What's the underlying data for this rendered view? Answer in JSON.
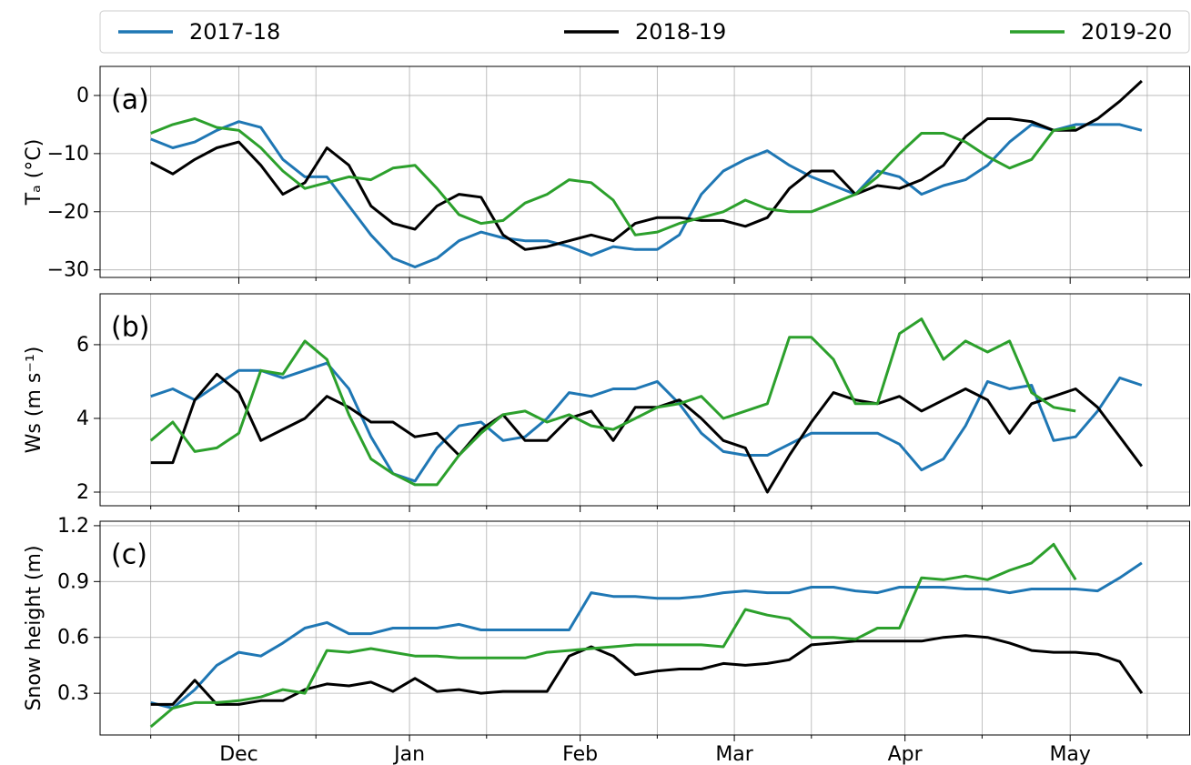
{
  "chart_data": [
    {
      "type": "line",
      "panel_label": "(a)",
      "y_label": "Tₐ (°C)",
      "x": [
        14,
        18,
        22,
        26,
        30,
        34,
        38,
        42,
        46,
        50,
        54,
        58,
        62,
        66,
        70,
        74,
        78,
        82,
        86,
        90,
        94,
        98,
        102,
        106,
        110,
        114,
        118,
        122,
        126,
        130,
        134,
        138,
        142,
        146,
        150,
        154,
        158,
        162,
        166,
        170,
        174,
        178,
        182,
        186,
        190,
        194
      ],
      "xlim": [
        4.8,
        202.7
      ],
      "xticks": [
        {
          "value": 30,
          "label": "Dec"
        },
        {
          "value": 61,
          "label": "Jan"
        },
        {
          "value": 92,
          "label": "Feb"
        },
        {
          "value": 120,
          "label": "Mar"
        },
        {
          "value": 151,
          "label": "Apr"
        },
        {
          "value": 181,
          "label": "May"
        }
      ],
      "xminor": [
        14,
        44,
        75,
        106,
        134,
        165,
        195
      ],
      "ylim": [
        -31.3,
        5
      ],
      "yticks": [
        {
          "value": -30,
          "label": "−30"
        },
        {
          "value": -20,
          "label": "−20"
        },
        {
          "value": -10,
          "label": "−10"
        },
        0
      ],
      "grid": true,
      "series": [
        {
          "name": "2017-18",
          "color": "#1f77b4",
          "values": [
            -7.5,
            -9,
            -8,
            -6,
            -4.5,
            -5.5,
            -11,
            -14,
            -14,
            -19,
            -24,
            -28,
            -29.5,
            -28,
            -25,
            -23.5,
            -24.5,
            -25,
            -25,
            -26,
            -27.5,
            -26,
            -26.5,
            -26.5,
            -24,
            -17,
            -13,
            -11,
            -9.5,
            -12,
            -14,
            -15.5,
            -17,
            -13,
            -14,
            -17,
            -15.5,
            -14.5,
            -12,
            -8,
            -5,
            -6,
            -5,
            -5,
            -5,
            -6
          ]
        },
        {
          "name": "2018-19",
          "color": "#000000",
          "values": [
            -11.5,
            -13.5,
            -11,
            -9,
            -8,
            -12,
            -17,
            -15,
            -9,
            -12,
            -19,
            -22,
            -23,
            -19,
            -17,
            -17.5,
            -24,
            -26.5,
            -26,
            -25,
            -24,
            -25,
            -22,
            -21,
            -21,
            -21.5,
            -21.5,
            -22.5,
            -21,
            -16,
            -13,
            -13,
            -17,
            -15.5,
            -16,
            -14.5,
            -12,
            -7,
            -4,
            -4,
            -4.5,
            -6,
            -6,
            -4,
            -1,
            2.5
          ]
        },
        {
          "name": "2019-20",
          "color": "#2ca02c",
          "values": [
            -6.5,
            -5,
            -4,
            -5.5,
            -6,
            -9,
            -13,
            -16,
            -15,
            -14,
            -14.5,
            -12.5,
            -12,
            -16,
            -20.5,
            -22,
            -21.5,
            -18.5,
            -17,
            -14.5,
            -15,
            -18,
            -24,
            -23.5,
            -22,
            -21,
            -20,
            -18,
            -19.5,
            -20,
            -20,
            -18.5,
            -17,
            -14,
            -10,
            -6.5,
            -6.5,
            -8,
            -10.5,
            -12.5,
            -11,
            -6,
            -5.5,
            null,
            null,
            null
          ]
        }
      ]
    },
    {
      "type": "line",
      "panel_label": "(b)",
      "y_label": "Ws (m s⁻¹)",
      "ylim": [
        1.63,
        7.38
      ],
      "yticks": [
        2,
        4,
        6
      ],
      "grid": true,
      "series": [
        {
          "color": "#1f77b4",
          "values": [
            4.6,
            4.8,
            4.5,
            4.9,
            5.3,
            5.3,
            5.1,
            5.3,
            5.5,
            4.8,
            3.5,
            2.5,
            2.3,
            3.2,
            3.8,
            3.9,
            3.4,
            3.5,
            4,
            4.7,
            4.6,
            4.8,
            4.8,
            5,
            4.4,
            3.6,
            3.1,
            3,
            3,
            3.3,
            3.6,
            3.6,
            3.6,
            3.6,
            3.3,
            2.6,
            2.9,
            3.8,
            5,
            4.8,
            4.9,
            3.4,
            3.5,
            4.2,
            5.1,
            4.9
          ]
        },
        {
          "color": "#000000",
          "values": [
            2.8,
            2.8,
            4.5,
            5.2,
            4.7,
            3.4,
            3.7,
            4,
            4.6,
            4.3,
            3.9,
            3.9,
            3.5,
            3.6,
            3,
            3.7,
            4.1,
            3.4,
            3.4,
            4,
            4.2,
            3.4,
            4.3,
            4.3,
            4.5,
            4,
            3.4,
            3.2,
            2,
            3,
            3.9,
            4.7,
            4.5,
            4.4,
            4.6,
            4.2,
            4.5,
            4.8,
            4.5,
            3.6,
            4.4,
            4.6,
            4.8,
            4.3,
            3.5,
            2.7
          ]
        },
        {
          "color": "#2ca02c",
          "values": [
            3.4,
            3.9,
            3.1,
            3.2,
            3.6,
            5.3,
            5.2,
            6.1,
            5.6,
            4.1,
            2.9,
            2.5,
            2.2,
            2.2,
            3,
            3.6,
            4.1,
            4.2,
            3.9,
            4.1,
            3.8,
            3.7,
            4,
            4.3,
            4.4,
            4.6,
            4,
            4.2,
            4.4,
            6.2,
            6.2,
            5.6,
            4.4,
            4.4,
            6.3,
            6.7,
            5.6,
            6.1,
            5.8,
            6.1,
            4.7,
            4.3,
            4.2,
            null,
            null,
            null
          ]
        }
      ]
    },
    {
      "type": "line",
      "panel_label": "(c)",
      "y_label": "Snow height (m)",
      "ylim": [
        0.076,
        1.224
      ],
      "yticks": [
        0.3,
        0.6,
        0.9,
        1.2
      ],
      "grid": true,
      "series": [
        {
          "color": "#1f77b4",
          "values": [
            0.25,
            0.22,
            0.32,
            0.45,
            0.52,
            0.5,
            0.57,
            0.65,
            0.68,
            0.62,
            0.62,
            0.65,
            0.65,
            0.65,
            0.67,
            0.64,
            0.64,
            0.64,
            0.64,
            0.64,
            0.84,
            0.82,
            0.82,
            0.81,
            0.81,
            0.82,
            0.84,
            0.85,
            0.84,
            0.84,
            0.87,
            0.87,
            0.85,
            0.84,
            0.87,
            0.87,
            0.87,
            0.86,
            0.86,
            0.84,
            0.86,
            0.86,
            0.86,
            0.85,
            0.92,
            1
          ]
        },
        {
          "color": "#000000",
          "values": [
            0.24,
            0.24,
            0.37,
            0.24,
            0.24,
            0.26,
            0.26,
            0.32,
            0.35,
            0.34,
            0.36,
            0.31,
            0.38,
            0.31,
            0.32,
            0.3,
            0.31,
            0.31,
            0.31,
            0.5,
            0.55,
            0.5,
            0.4,
            0.42,
            0.43,
            0.43,
            0.46,
            0.45,
            0.46,
            0.48,
            0.56,
            0.57,
            0.58,
            0.58,
            0.58,
            0.58,
            0.6,
            0.61,
            0.6,
            0.57,
            0.53,
            0.52,
            0.52,
            0.51,
            0.47,
            0.3
          ]
        },
        {
          "color": "#2ca02c",
          "values": [
            0.12,
            0.22,
            0.25,
            0.25,
            0.26,
            0.28,
            0.32,
            0.3,
            0.53,
            0.52,
            0.54,
            0.52,
            0.5,
            0.5,
            0.49,
            0.49,
            0.49,
            0.49,
            0.52,
            0.53,
            0.54,
            0.55,
            0.56,
            0.56,
            0.56,
            0.56,
            0.55,
            0.75,
            0.72,
            0.7,
            0.6,
            0.6,
            0.59,
            0.65,
            0.65,
            0.92,
            0.91,
            0.93,
            0.91,
            0.96,
            1,
            1.1,
            0.91,
            null,
            null,
            null
          ]
        }
      ]
    }
  ]
}
